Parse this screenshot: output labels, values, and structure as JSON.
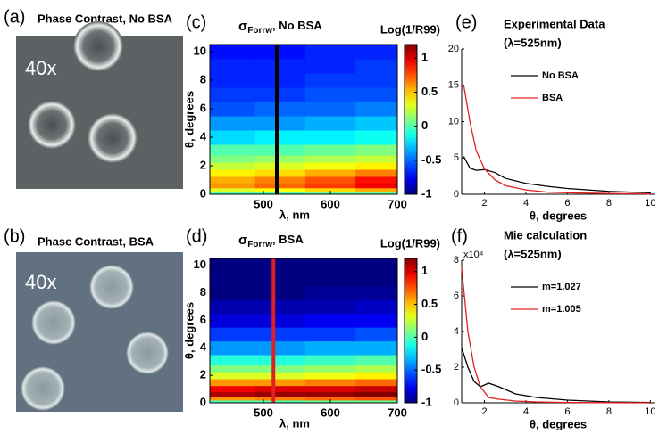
{
  "panels": [
    {
      "label": "(a)",
      "title": "Phase Contrast, No BSA",
      "magnification": "40x"
    },
    {
      "label": "(b)",
      "title": "Phase Contrast, BSA",
      "magnification": "40x"
    }
  ],
  "chart_data": [
    {
      "type": "heatmap",
      "label": "(c)",
      "title": "σ",
      "title_sub": "Forrw",
      "title_rest": ", No BSA",
      "colorbar_title": "Log(1/R99)",
      "xlabel": "λ, nm",
      "ylabel": "θ, degrees",
      "xlim": [
        420,
        700
      ],
      "xticks": [
        500,
        600,
        700
      ],
      "ylim": [
        0,
        10.5
      ],
      "yticks": [
        0,
        2,
        4,
        6,
        8,
        10
      ],
      "clim": [
        -1,
        1.2
      ],
      "cticks": [
        -1,
        -0.5,
        0,
        0.5,
        1
      ],
      "cursor": {
        "x": 520,
        "color": "#000000"
      },
      "x": [
        450,
        525,
        600,
        675
      ],
      "y": [
        0.1,
        0.3,
        0.6,
        1,
        1.5,
        2,
        2.5,
        3,
        4,
        5,
        6,
        7,
        8,
        9,
        10
      ],
      "values": [
        [
          0.0,
          0.0,
          0.05,
          0.05
        ],
        [
          0.3,
          0.35,
          0.45,
          0.55
        ],
        [
          0.6,
          0.7,
          0.8,
          0.95
        ],
        [
          0.55,
          0.65,
          0.75,
          0.9
        ],
        [
          0.4,
          0.45,
          0.55,
          0.65
        ],
        [
          0.25,
          0.3,
          0.35,
          0.4
        ],
        [
          0.1,
          0.15,
          0.2,
          0.25
        ],
        [
          0.0,
          0.0,
          0.05,
          0.1
        ],
        [
          -0.25,
          -0.2,
          -0.2,
          -0.15
        ],
        [
          -0.4,
          -0.4,
          -0.35,
          -0.3
        ],
        [
          -0.55,
          -0.5,
          -0.5,
          -0.45
        ],
        [
          -0.6,
          -0.6,
          -0.55,
          -0.55
        ],
        [
          -0.65,
          -0.65,
          -0.6,
          -0.6
        ],
        [
          -0.65,
          -0.65,
          -0.65,
          -0.6
        ],
        [
          -0.7,
          -0.7,
          -0.65,
          -0.65
        ]
      ]
    },
    {
      "type": "heatmap",
      "label": "(d)",
      "title": "σ",
      "title_sub": "Forrw",
      "title_rest": ", BSA",
      "colorbar_title": "Log(1/R99)",
      "xlabel": "λ, nm",
      "ylabel": "θ, degrees",
      "xlim": [
        420,
        700
      ],
      "xticks": [
        500,
        600,
        700
      ],
      "ylim": [
        0,
        10.5
      ],
      "yticks": [
        0,
        2,
        4,
        6,
        8,
        10
      ],
      "clim": [
        -1,
        1.2
      ],
      "cticks": [
        -1,
        -0.5,
        0,
        0.5,
        1
      ],
      "cursor": {
        "x": 515,
        "color": "#e02020"
      },
      "x": [
        450,
        525,
        600,
        675
      ],
      "y": [
        0.1,
        0.3,
        0.6,
        1,
        1.5,
        2,
        2.5,
        3,
        4,
        5,
        6,
        7,
        8,
        9,
        10
      ],
      "values": [
        [
          0.0,
          0.0,
          0.05,
          0.05
        ],
        [
          0.6,
          0.65,
          0.7,
          0.75
        ],
        [
          1.1,
          1.15,
          1.15,
          1.2
        ],
        [
          0.95,
          1.0,
          1.0,
          1.05
        ],
        [
          0.6,
          0.6,
          0.65,
          0.7
        ],
        [
          0.3,
          0.3,
          0.35,
          0.4
        ],
        [
          0.1,
          0.1,
          0.15,
          0.2
        ],
        [
          -0.1,
          -0.1,
          -0.05,
          0.0
        ],
        [
          -0.4,
          -0.4,
          -0.35,
          -0.35
        ],
        [
          -0.6,
          -0.6,
          -0.6,
          -0.55
        ],
        [
          -0.8,
          -0.8,
          -0.75,
          -0.75
        ],
        [
          -0.9,
          -0.9,
          -0.9,
          -0.85
        ],
        [
          -1.0,
          -1.0,
          -0.95,
          -0.95
        ],
        [
          -1.0,
          -1.0,
          -1.0,
          -1.0
        ],
        [
          -1.0,
          -1.0,
          -1.0,
          -1.0
        ]
      ]
    },
    {
      "type": "line",
      "label": "(e)",
      "title": "Experimental Data",
      "subtitle": "(λ=525nm)",
      "xlabel": "θ, degrees",
      "xlim": [
        0.9,
        10.2
      ],
      "xticks": [
        2,
        4,
        6,
        8,
        10
      ],
      "ylim": [
        0,
        20
      ],
      "yticks": [
        0,
        5,
        10,
        15,
        20
      ],
      "x": [
        1,
        1.3,
        1.6,
        2,
        2.5,
        3,
        4,
        5,
        6,
        8,
        10
      ],
      "series": [
        {
          "name": "No BSA",
          "color": "#000000",
          "values": [
            5.2,
            3.6,
            3.3,
            3.4,
            3.0,
            2.2,
            1.5,
            1.1,
            0.8,
            0.4,
            0.2
          ]
        },
        {
          "name": "BSA",
          "color": "#e02020",
          "values": [
            15,
            10,
            6,
            3.5,
            2,
            1.2,
            0.6,
            0.3,
            0.2,
            0.1,
            0.05
          ]
        }
      ]
    },
    {
      "type": "line",
      "label": "(f)",
      "title": "Mie calculation",
      "subtitle": "(λ=525nm)",
      "xlabel": "θ, degrees",
      "y_multiplier": "x10⁴",
      "xlim": [
        0.9,
        10.2
      ],
      "xticks": [
        2,
        4,
        6,
        8,
        10
      ],
      "ylim": [
        0,
        8
      ],
      "yticks": [
        0,
        2,
        4,
        6,
        8
      ],
      "x": [
        0.9,
        1.2,
        1.5,
        1.8,
        2.2,
        2.7,
        3.5,
        4.5,
        6,
        8,
        10
      ],
      "series": [
        {
          "name": "m=1.027",
          "color": "#000000",
          "values": [
            3.1,
            2.0,
            1.2,
            0.9,
            1.1,
            0.9,
            0.5,
            0.3,
            0.15,
            0.05,
            0.02
          ]
        },
        {
          "name": "m=1.005",
          "color": "#e02020",
          "values": [
            7.6,
            4.0,
            2.0,
            0.9,
            0.3,
            0.2,
            0.1,
            0.05,
            0.02,
            0.01,
            0
          ]
        }
      ]
    }
  ]
}
